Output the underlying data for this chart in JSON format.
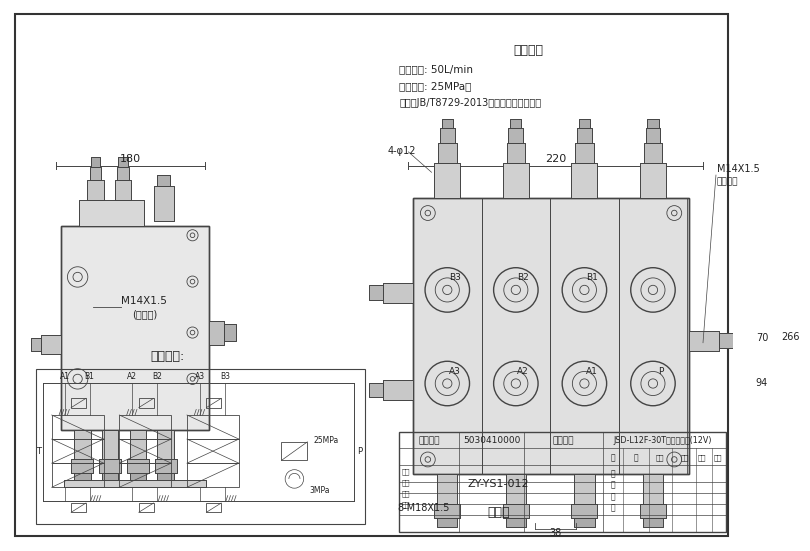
{
  "bg_color": "#f0f0f0",
  "border_color": "#333333",
  "line_color": "#444444",
  "dim_color": "#333333",
  "title_left": "液压原理:",
  "title_right": "性能参数",
  "param1": "公称流量: 50L/min",
  "param2": "公称压力: 25MPa。",
  "param3": "试验按JB/T8729-2013液压多路换向阀执行",
  "dim_left": "180",
  "dim_right": "220",
  "annot_left1": "M14X1.5",
  "annot_left2": "(测压口)",
  "annot_right1": "4-φ12",
  "annot_right2": "M14X1.5",
  "annot_right3": "控制油口",
  "annot_right4": "8-M18X1.5",
  "annot_right5": "70",
  "annot_right6": "94",
  "annot_right7": "266",
  "annot_right8": "38",
  "labels_right": [
    "B3",
    "B2",
    "B1",
    "A3",
    "A2",
    "A1",
    "P"
  ],
  "table_col1": "零品编码",
  "table_val1": "5030410000",
  "table_col2": "品名规格",
  "table_val2": "JSD-L12F-30T多路换向阀(12V)",
  "table_sub": "ZY-YS1-012",
  "table_bottom": "装配图"
}
